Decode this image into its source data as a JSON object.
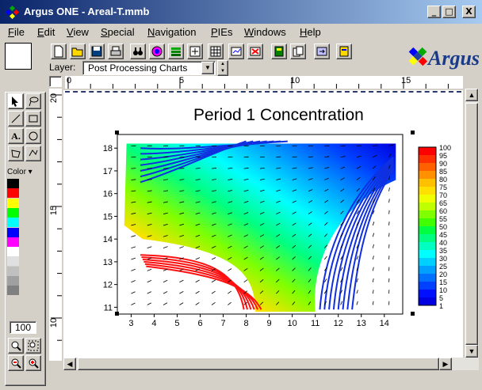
{
  "window": {
    "title": "Argus ONE - Areal-T.mmb",
    "min": "_",
    "max": "□",
    "close": "X"
  },
  "menu": [
    {
      "text": "File",
      "u": "F",
      "rest": "ile"
    },
    {
      "text": "Edit",
      "u": "E",
      "rest": "dit"
    },
    {
      "text": "View",
      "u": "V",
      "rest": "iew"
    },
    {
      "text": "Special",
      "u": "S",
      "rest": "pecial"
    },
    {
      "text": "Navigation",
      "u": "N",
      "rest": "avigation"
    },
    {
      "text": "PIEs",
      "u": "P",
      "rest": "IEs"
    },
    {
      "text": "Windows",
      "u": "W",
      "rest": "indows"
    },
    {
      "text": "Help",
      "u": "H",
      "rest": "elp"
    }
  ],
  "layer": {
    "label": "Layer:",
    "value": "Post Processing Charts"
  },
  "logo": "Argus",
  "tools": {
    "color_label": "Color",
    "zoom": "100"
  },
  "palette": [
    "#000000",
    "#ff0000",
    "#ffff00",
    "#00ff00",
    "#00ffff",
    "#0000ff",
    "#ff00ff",
    "#ffffff",
    "#e0e0e0",
    "#c0c0c0",
    "#a0a0a0",
    "#808080"
  ],
  "hruler_ticks": [
    "0",
    "5",
    "10",
    "15"
  ],
  "vruler_ticks": [
    "20",
    "15",
    "10"
  ],
  "chart_data": {
    "type": "heatmap",
    "title": "Period 1 Concentration",
    "xlim": [
      2.4,
      14.8
    ],
    "ylim": [
      10.7,
      18.6
    ],
    "x_ticks": [
      "3",
      "4",
      "5",
      "6",
      "7",
      "8",
      "9",
      "10",
      "11",
      "12",
      "13",
      "14"
    ],
    "y_ticks": [
      "11",
      "12",
      "13",
      "14",
      "15",
      "16",
      "17",
      "18"
    ],
    "colorbar_labels": [
      "100",
      "95",
      "90",
      "85",
      "80",
      "75",
      "70",
      "65",
      "60",
      "55",
      "50",
      "45",
      "40",
      "35",
      "30",
      "25",
      "20",
      "15",
      "10",
      "5",
      "1"
    ],
    "colorbar_colors": [
      "#ff0000",
      "#ff3000",
      "#ff6000",
      "#ff9000",
      "#ffc000",
      "#ffe000",
      "#f0ff00",
      "#c0ff00",
      "#80ff00",
      "#40ff00",
      "#00ff40",
      "#00ff80",
      "#00ffc0",
      "#00ffff",
      "#00d0ff",
      "#00a0ff",
      "#0070ff",
      "#0040ff",
      "#0010ff",
      "#0000e0"
    ]
  }
}
